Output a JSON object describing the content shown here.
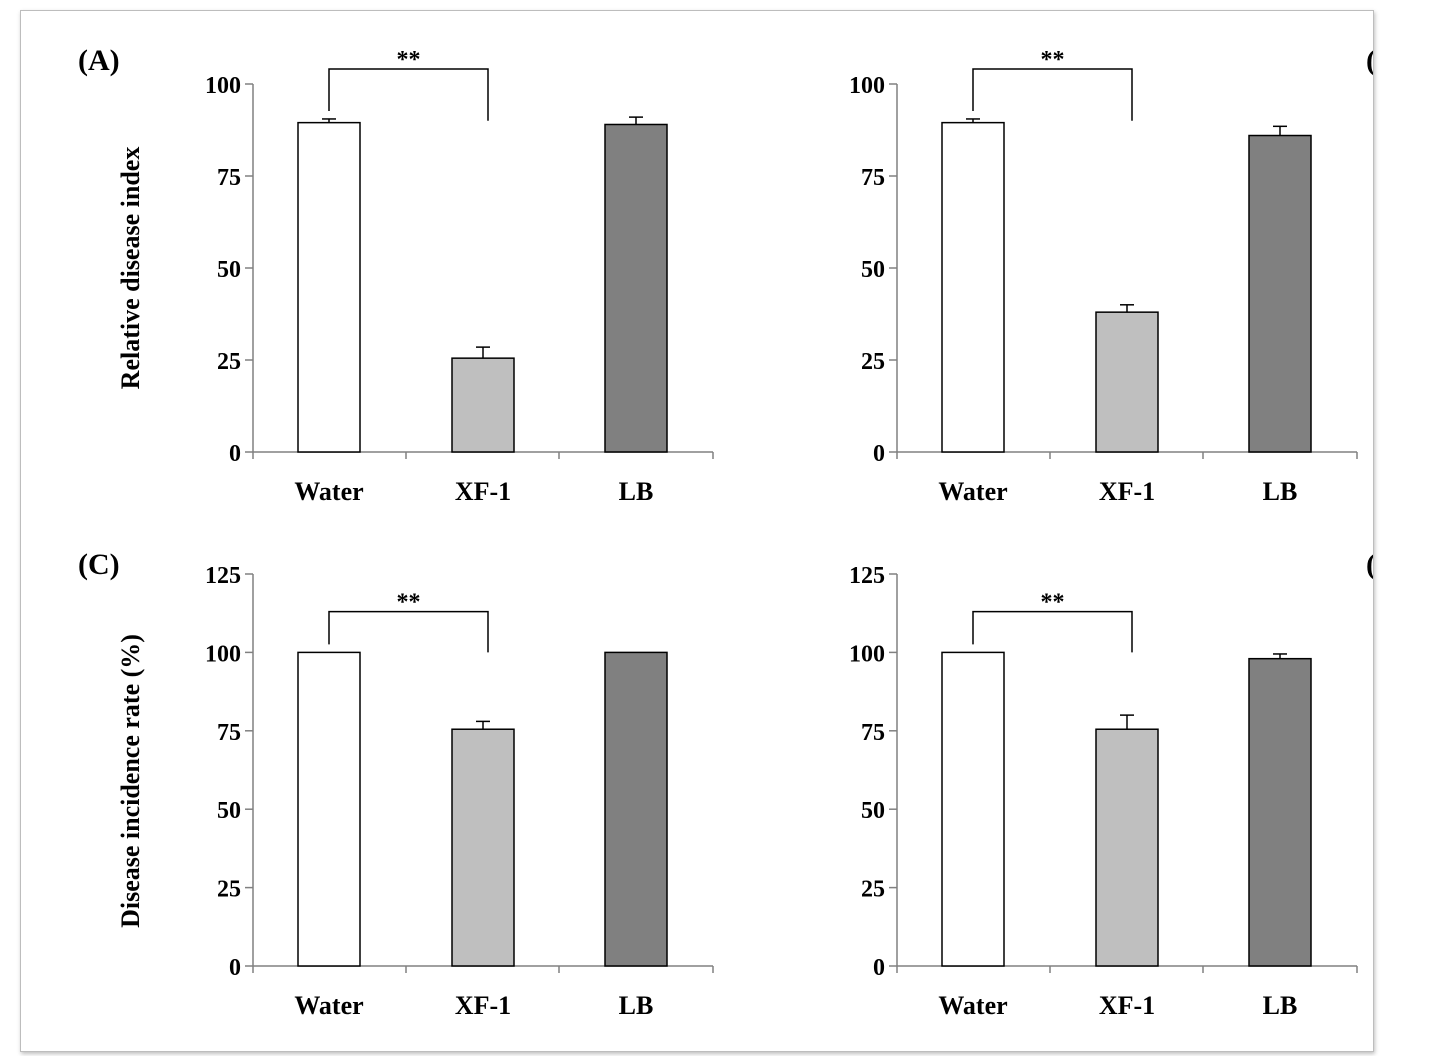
{
  "chart_data": [
    {
      "type": "bar",
      "panel_label": "(A)",
      "categories": [
        "Water",
        "XF-1",
        "LB"
      ],
      "values": [
        89.5,
        25.5,
        89.0
      ],
      "errors": [
        1.0,
        3.0,
        2.0
      ],
      "ylabel": "Relative disease index",
      "ylim": [
        0,
        100
      ],
      "yticks": [
        "0",
        "25",
        "50",
        "75",
        "100"
      ],
      "significance": {
        "from": "Water",
        "to": "XF-1",
        "label": "**"
      }
    },
    {
      "type": "bar",
      "panel_label": "(B)",
      "categories": [
        "Water",
        "XF-1",
        "LB"
      ],
      "values": [
        89.5,
        38.0,
        86.0
      ],
      "errors": [
        1.0,
        2.0,
        2.5
      ],
      "ylabel": "Relative disease index",
      "ylim": [
        0,
        100
      ],
      "yticks": [
        "0",
        "25",
        "50",
        "75",
        "100"
      ],
      "significance": {
        "from": "Water",
        "to": "XF-1",
        "label": "**"
      }
    },
    {
      "type": "bar",
      "panel_label": "(C)",
      "categories": [
        "Water",
        "XF-1",
        "LB"
      ],
      "values": [
        100,
        75.5,
        100
      ],
      "errors": [
        0,
        2.5,
        0
      ],
      "ylabel": "Disease incidence rate (%)",
      "ylim": [
        0,
        125
      ],
      "yticks": [
        "0",
        "25",
        "50",
        "75",
        "100",
        "125"
      ],
      "significance": {
        "from": "Water",
        "to": "XF-1",
        "label": "**"
      }
    },
    {
      "type": "bar",
      "panel_label": "(D)",
      "categories": [
        "Water",
        "XF-1",
        "LB"
      ],
      "values": [
        100,
        75.5,
        98.0
      ],
      "errors": [
        0,
        4.5,
        1.5
      ],
      "ylabel": "Disease incidence rate (%)",
      "ylim": [
        0,
        125
      ],
      "yticks": [
        "0",
        "25",
        "50",
        "75",
        "100",
        "125"
      ],
      "significance": {
        "from": "Water",
        "to": "XF-1",
        "label": "**"
      }
    }
  ],
  "colors": {
    "Water": "#ffffff",
    "XF-1": "#bfbfbf",
    "LB": "#808080",
    "axis": "#808080",
    "bar_stroke": "#000000"
  }
}
